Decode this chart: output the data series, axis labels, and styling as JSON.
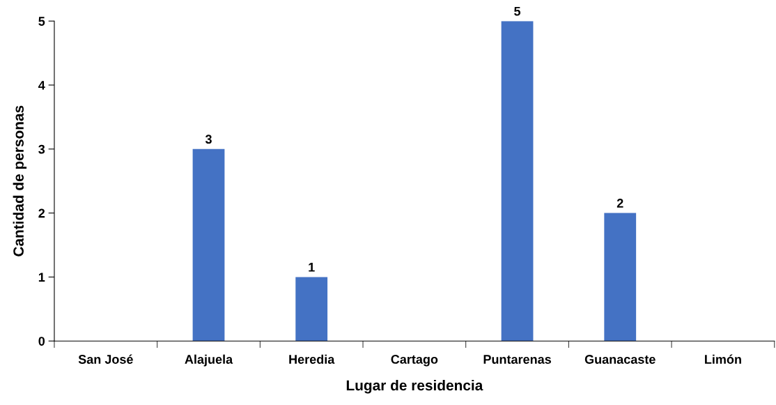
{
  "chart_data": {
    "type": "bar",
    "xlabel": "Lugar de residencia",
    "ylabel": "Cantidad de personas",
    "categories": [
      "San José",
      "Alajuela",
      "Heredia",
      "Cartago",
      "Puntarenas",
      "Guanacaste",
      "Limón"
    ],
    "values": [
      0,
      3,
      1,
      0,
      5,
      2,
      0
    ],
    "value_labels": [
      null,
      "3",
      "1",
      null,
      "5",
      "2",
      null
    ],
    "color": "#4472c4",
    "ylim": [
      0,
      5
    ],
    "yticks": [
      0,
      1,
      2,
      3,
      4,
      5
    ],
    "grid": false,
    "legend": false
  }
}
